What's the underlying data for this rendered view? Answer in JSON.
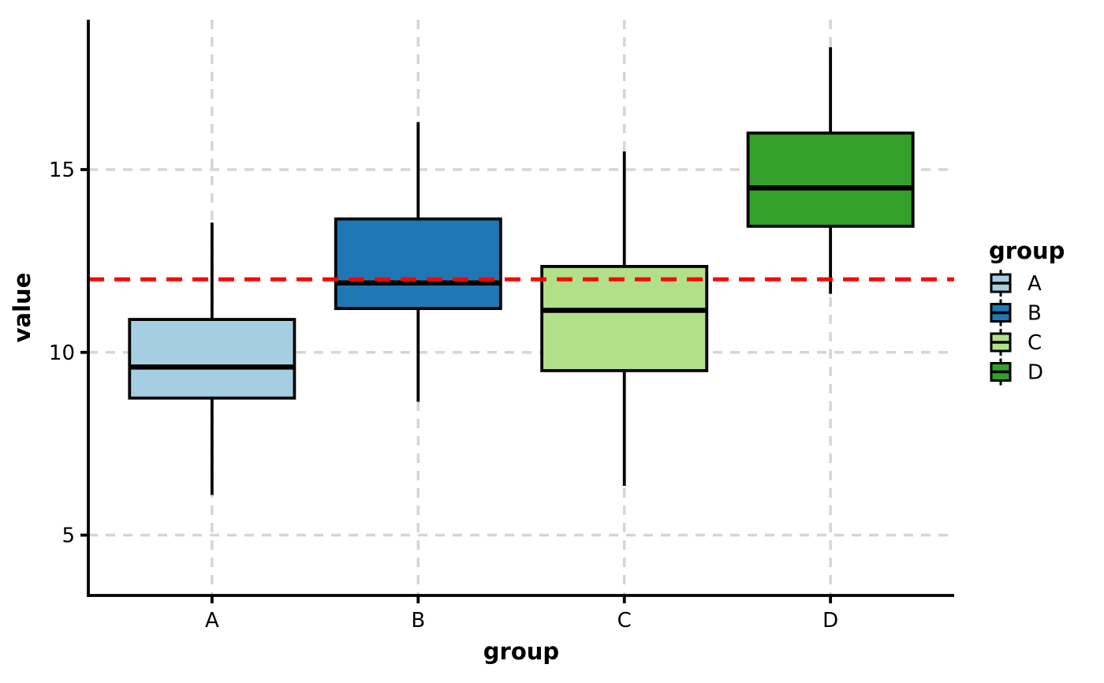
{
  "chart_data": {
    "type": "boxplot",
    "title": "",
    "xlabel": "group",
    "ylabel": "value",
    "categories": [
      "A",
      "B",
      "C",
      "D"
    ],
    "series": [
      {
        "name": "A",
        "color": "#A6CEE3",
        "whisker_low": 6.1,
        "q1": 8.75,
        "median": 9.6,
        "q3": 10.9,
        "whisker_high": 13.55
      },
      {
        "name": "B",
        "color": "#1F78B4",
        "whisker_low": 8.65,
        "q1": 11.2,
        "median": 11.9,
        "q3": 13.65,
        "whisker_high": 16.3
      },
      {
        "name": "C",
        "color": "#B2DF8A",
        "whisker_low": 6.35,
        "q1": 9.5,
        "median": 11.15,
        "q3": 12.35,
        "whisker_high": 15.5
      },
      {
        "name": "D",
        "color": "#33A02C",
        "whisker_low": 11.6,
        "q1": 13.45,
        "median": 14.5,
        "q3": 16.0,
        "whisker_high": 18.35
      }
    ],
    "reference_line": {
      "y": 12,
      "color": "#FF0000",
      "style": "dashed"
    },
    "y_ticks": [
      5,
      10,
      15
    ],
    "ylim": [
      3.35,
      19.1
    ],
    "grid": {
      "show": true,
      "style": "dashed",
      "color": "#D5D5D5"
    },
    "box_width_fraction": 0.8,
    "legend": {
      "title": "group",
      "position": "right",
      "entries": [
        {
          "label": "A",
          "color": "#A6CEE3"
        },
        {
          "label": "B",
          "color": "#1F78B4"
        },
        {
          "label": "C",
          "color": "#B2DF8A"
        },
        {
          "label": "D",
          "color": "#33A02C"
        }
      ]
    },
    "axis_color": "#000000",
    "median_color": "#000000"
  }
}
